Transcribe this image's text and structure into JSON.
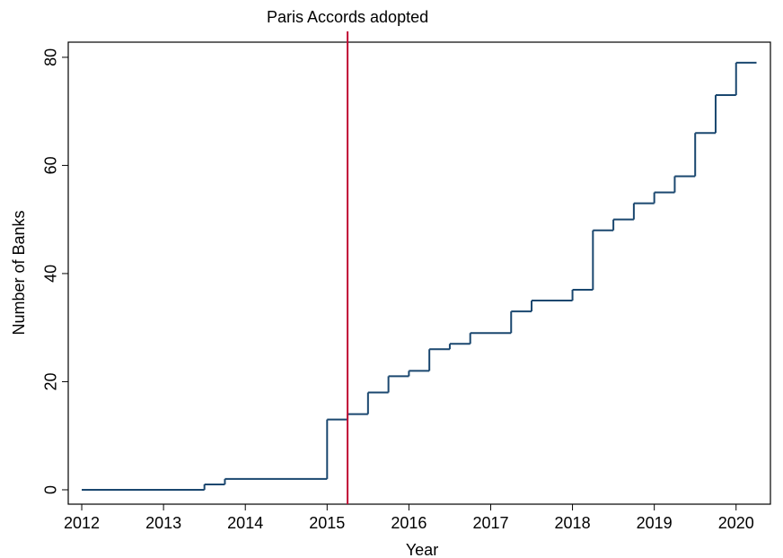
{
  "chart_data": {
    "type": "line",
    "step": "post",
    "x_label": "Year",
    "y_label": "Number of Banks",
    "x": [
      2012,
      2013.5,
      2013.75,
      2015,
      2015.25,
      2015.5,
      2015.75,
      2016,
      2016.25,
      2016.5,
      2016.75,
      2017.25,
      2017.5,
      2018,
      2018.25,
      2018.5,
      2018.75,
      2019,
      2019.25,
      2019.5,
      2019.75,
      2020,
      2020.25
    ],
    "series": [
      {
        "color": "#1a476f",
        "values": [
          0,
          1,
          2,
          13,
          14,
          18,
          21,
          22,
          26,
          27,
          29,
          33,
          35,
          37,
          48,
          50,
          53,
          55,
          58,
          66,
          73,
          79,
          79
        ]
      }
    ],
    "xlim": [
      2011.835,
      2020.42
    ],
    "ylim": [
      -2.66,
      82.8
    ],
    "xticks": [
      2012,
      2013,
      2014,
      2015,
      2016,
      2017,
      2018,
      2019,
      2020
    ],
    "yticks": [
      0,
      20,
      40,
      60,
      80
    ],
    "grid": false,
    "vline": {
      "x": 2015.25,
      "label": "Paris Accords adopted",
      "color": "#c10534"
    }
  }
}
